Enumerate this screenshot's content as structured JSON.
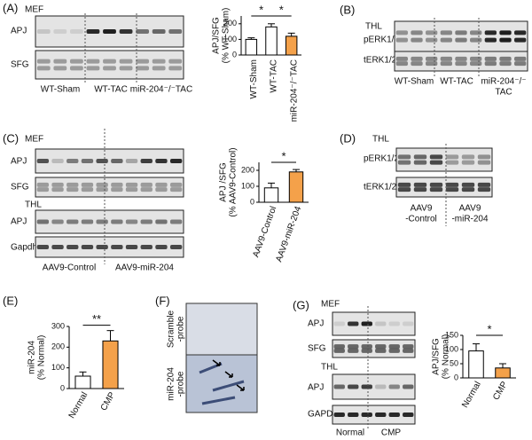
{
  "panels": {
    "a": {
      "label": "(A)",
      "cell": "MEF",
      "rows": [
        "APJ",
        "SFG"
      ],
      "groups": [
        "WT-Sham",
        "WT-TAC",
        "miR-204⁻/⁻TAC"
      ]
    },
    "b": {
      "label": "(B)",
      "cell": "THL",
      "rows": [
        "pERK1/2",
        "tERK1/2"
      ],
      "groups": [
        [
          "WT-Sham"
        ],
        [
          "WT-TAC"
        ],
        [
          "miR-204⁻/⁻",
          "TAC"
        ]
      ]
    },
    "c": {
      "label": "(C)",
      "cells": [
        "MEF",
        "THL"
      ],
      "rows": [
        "APJ",
        "SFG",
        "APJ",
        "Gapdh"
      ],
      "groups": [
        "AAV9-Control",
        "AAV9-miR-204"
      ]
    },
    "d": {
      "label": "(D)",
      "cell": "THL",
      "rows": [
        "pERK1/2",
        "tERK1/2"
      ],
      "groups": [
        [
          "AAV9",
          "-Control"
        ],
        [
          "AAV9",
          "-miR-204"
        ]
      ]
    },
    "e": {
      "label": "(E)"
    },
    "f": {
      "label": "(F)",
      "rows": [
        [
          "Scramble",
          "-probe"
        ],
        [
          "miR-204",
          "-probe"
        ]
      ]
    },
    "g": {
      "label": "(G)",
      "cells": [
        "MEF",
        "THL"
      ],
      "rows": [
        "APJ",
        "SFG",
        "APJ",
        "GAPDH"
      ],
      "groups": [
        "Normal",
        "CMP"
      ]
    }
  },
  "chart_data": [
    {
      "type": "bar",
      "ylabel": [
        "APJ/SFG",
        "(% WT-Sham)"
      ],
      "categories": [
        "WT-Sham",
        "WT-TAC",
        "miR-204⁻/⁻TAC"
      ],
      "values": [
        100,
        180,
        120
      ],
      "errors": [
        10,
        20,
        20
      ],
      "colors": [
        "#ffffff",
        "#ffffff",
        "#f4a14a"
      ],
      "ylim": [
        0,
        250
      ],
      "yticks": [
        0,
        100,
        200
      ],
      "annotations": [
        "*",
        "*"
      ]
    },
    {
      "type": "bar",
      "ylabel": [
        "APJ /SFG",
        "(% AAV9-Control)"
      ],
      "categories": [
        "AAV9-Control",
        "AAV9-miR-204"
      ],
      "values": [
        90,
        190
      ],
      "errors": [
        30,
        15
      ],
      "colors": [
        "#ffffff",
        "#f4a14a"
      ],
      "ylim": [
        0,
        250
      ],
      "yticks": [
        0,
        100,
        200
      ],
      "annotations": [
        "*"
      ]
    },
    {
      "type": "bar",
      "ylabel": [
        "miR-204",
        "(% Normal)"
      ],
      "categories": [
        "Normal",
        "CMP"
      ],
      "values": [
        60,
        230
      ],
      "errors": [
        20,
        50
      ],
      "colors": [
        "#ffffff",
        "#f4a14a"
      ],
      "ylim": [
        0,
        300
      ],
      "yticks": [
        0,
        100,
        200,
        300
      ],
      "annotations": [
        "**"
      ]
    },
    {
      "type": "bar",
      "ylabel": [
        "APJ/SFG",
        "(% Normal)"
      ],
      "categories": [
        "Normal",
        "CMP"
      ],
      "values": [
        95,
        35
      ],
      "errors": [
        25,
        15
      ],
      "colors": [
        "#ffffff",
        "#f4a14a"
      ],
      "ylim": [
        0,
        150
      ],
      "yticks": [
        0,
        50,
        100,
        150
      ],
      "annotations": [
        "*"
      ]
    }
  ]
}
